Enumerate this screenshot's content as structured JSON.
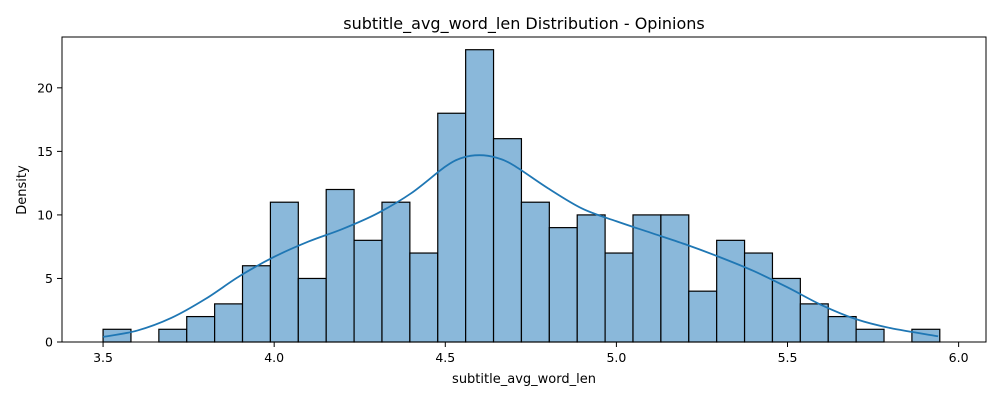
{
  "chart_data": {
    "type": "bar",
    "title": "subtitle_avg_word_len Distribution - Opinions",
    "xlabel": "subtitle_avg_word_len",
    "ylabel": "Density",
    "xlim": [
      3.38,
      6.08
    ],
    "ylim": [
      0,
      24
    ],
    "xticks": [
      3.5,
      4.0,
      4.5,
      5.0,
      5.5,
      6.0
    ],
    "xtick_labels": [
      "3.5",
      "4.0",
      "4.5",
      "5.0",
      "5.5",
      "6.0"
    ],
    "yticks": [
      0,
      5,
      10,
      15,
      20
    ],
    "ytick_labels": [
      "0",
      "5",
      "10",
      "15",
      "20"
    ],
    "bins": {
      "start": 3.5,
      "width": 0.0815,
      "counts": [
        1,
        0,
        1,
        2,
        3,
        6,
        11,
        5,
        12,
        8,
        11,
        7,
        18,
        23,
        16,
        11,
        9,
        10,
        7,
        10,
        10,
        4,
        8,
        7,
        5,
        3,
        2,
        1,
        0,
        1
      ]
    },
    "kde": {
      "x": [
        3.5,
        3.6,
        3.7,
        3.8,
        3.9,
        4.0,
        4.1,
        4.2,
        4.3,
        4.4,
        4.5,
        4.55,
        4.6,
        4.65,
        4.7,
        4.8,
        4.9,
        5.0,
        5.1,
        5.2,
        5.3,
        5.4,
        5.5,
        5.6,
        5.7,
        5.8,
        5.94
      ],
      "y": [
        0.4,
        0.9,
        1.9,
        3.4,
        5.2,
        6.7,
        7.9,
        8.9,
        10.1,
        11.7,
        13.8,
        14.5,
        14.7,
        14.5,
        13.9,
        12.1,
        10.5,
        9.5,
        8.6,
        7.7,
        6.7,
        5.6,
        4.3,
        2.9,
        1.8,
        1.1,
        0.45
      ]
    },
    "colors": {
      "bar_fill": "#8ab8da",
      "bar_edge": "#000000",
      "kde_line": "#1f77b4"
    },
    "grid": false,
    "legend": "none"
  }
}
